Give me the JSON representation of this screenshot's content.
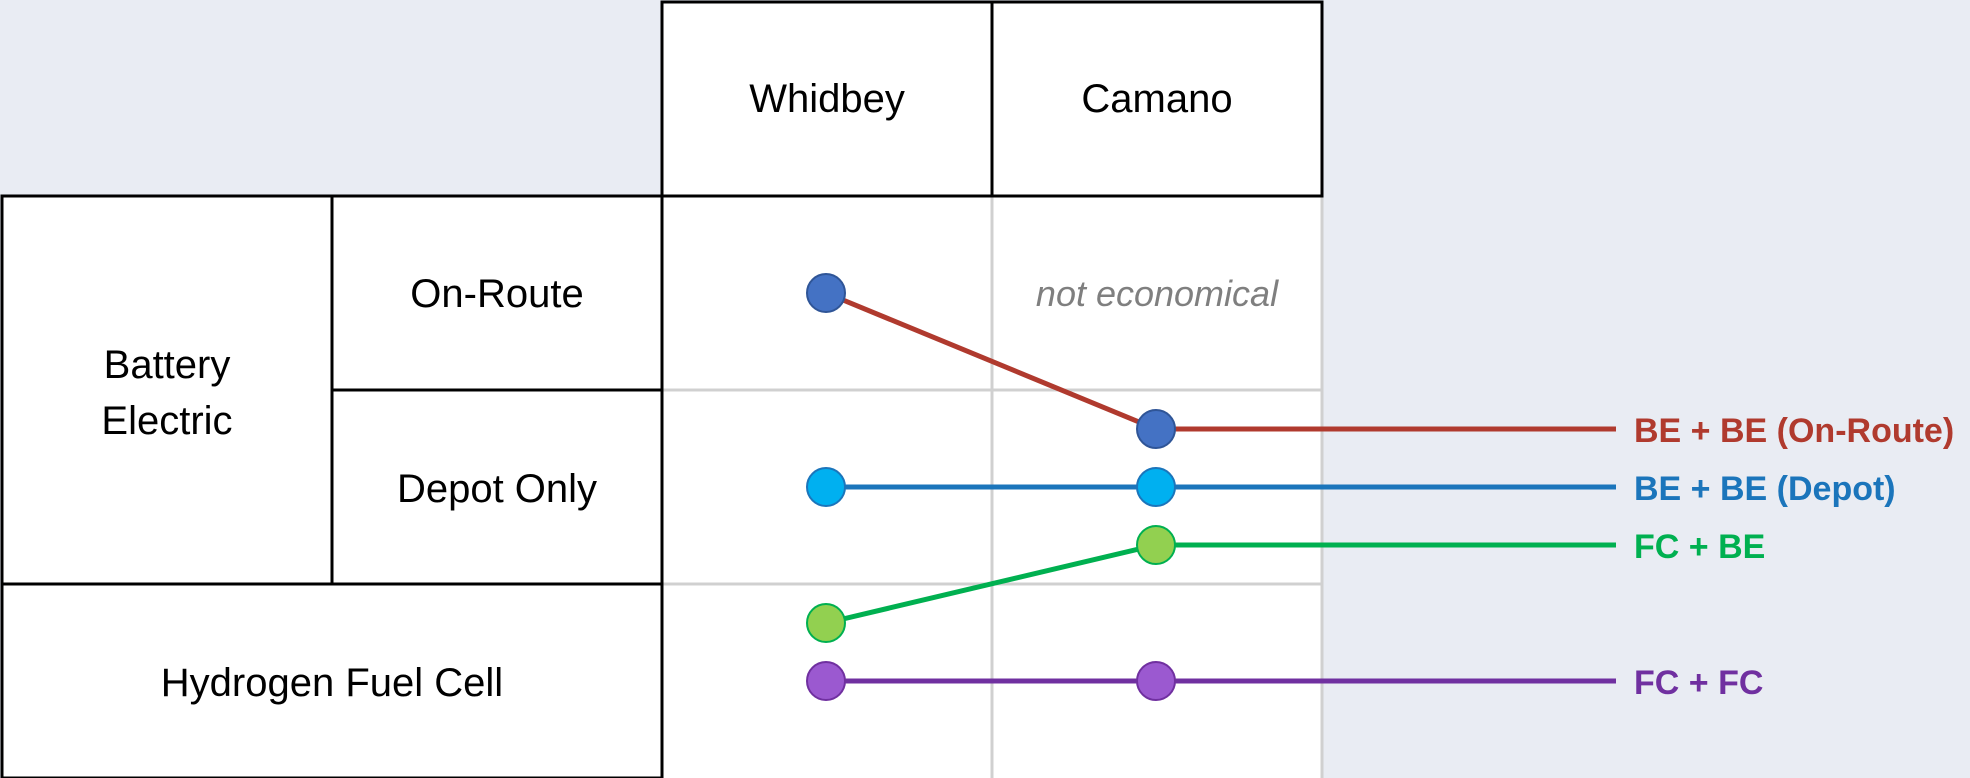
{
  "columns": [
    "Whidbey",
    "Camano"
  ],
  "row_groups": [
    {
      "label": "Battery Electric",
      "lines": [
        "Battery",
        "Electric"
      ],
      "subrows": [
        "On-Route",
        "Depot Only"
      ]
    },
    {
      "label": "Hydrogen Fuel Cell",
      "lines": [
        "Hydrogen Fuel Cell"
      ],
      "subrows": []
    }
  ],
  "annotations": {
    "not_economical": "not economical"
  },
  "series": [
    {
      "name": "BE + BE (On-Route)",
      "color": "#b03a2e",
      "dot_color": "#4472c4",
      "whidbey": "On-Route",
      "camano": "Depot Only"
    },
    {
      "name": "BE + BE (Depot)",
      "color": "#1b75bb",
      "dot_color": "#00b0f0",
      "whidbey": "Depot Only",
      "camano": "Depot Only"
    },
    {
      "name": "FC + BE",
      "color": "#00b050",
      "dot_color": "#92d050",
      "whidbey": "Hydrogen Fuel Cell",
      "camano": "Depot Only"
    },
    {
      "name": "FC + FC",
      "color": "#7030a0",
      "dot_color": "#9b59d0",
      "whidbey": "Hydrogen Fuel Cell",
      "camano": "Hydrogen Fuel Cell"
    }
  ]
}
